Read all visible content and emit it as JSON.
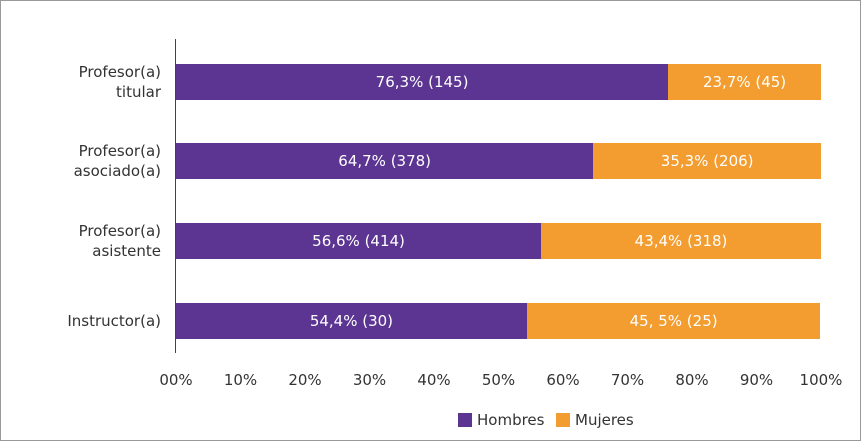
{
  "chart_data": {
    "type": "stacked_bar_horizontal",
    "categories": [
      "Profesor(a)\ntitular",
      "Profesor(a)\nasociado(a)",
      "Profesor(a)\nasistente",
      "Instructor(a)"
    ],
    "series": [
      {
        "name": "Hombres",
        "color": "#5c3592",
        "values": [
          76.3,
          64.7,
          56.6,
          54.4
        ],
        "value_labels": [
          "76,3% (145)",
          "64,7% (378)",
          "56,6% (414)",
          "54,4% (30)"
        ]
      },
      {
        "name": "Mujeres",
        "color": "#f39c2f",
        "values": [
          23.7,
          35.3,
          43.4,
          45.5
        ],
        "value_labels": [
          "23,7% (45)",
          "35,3% (206)",
          "43,4% (318)",
          "45, 5% (25)"
        ]
      }
    ],
    "xlim": [
      0,
      100
    ],
    "xticks": [
      {
        "value": 0,
        "label": "00%"
      },
      {
        "value": 10,
        "label": "10%"
      },
      {
        "value": 20,
        "label": "20%"
      },
      {
        "value": 30,
        "label": "30%"
      },
      {
        "value": 40,
        "label": "40%"
      },
      {
        "value": 50,
        "label": "50%"
      },
      {
        "value": 60,
        "label": "60%"
      },
      {
        "value": 70,
        "label": "70%"
      },
      {
        "value": 80,
        "label": "80%"
      },
      {
        "value": 90,
        "label": "90%"
      },
      {
        "value": 100,
        "label": "100%"
      }
    ],
    "legend": "bottom"
  }
}
